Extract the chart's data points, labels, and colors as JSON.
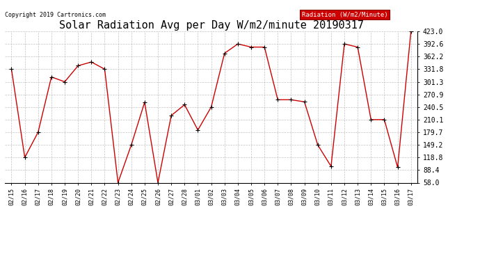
{
  "title": "Solar Radiation Avg per Day W/m2/minute 20190317",
  "copyright": "Copyright 2019 Cartronics.com",
  "legend_label": "Radiation (W/m2/Minute)",
  "dates": [
    "02/15",
    "02/16",
    "02/17",
    "02/18",
    "02/19",
    "02/20",
    "02/21",
    "02/22",
    "02/23",
    "02/24",
    "02/25",
    "02/26",
    "02/27",
    "02/28",
    "03/01",
    "03/02",
    "03/03",
    "03/04",
    "03/05",
    "03/06",
    "03/07",
    "03/08",
    "03/09",
    "03/10",
    "03/11",
    "03/12",
    "03/13",
    "03/14",
    "03/15",
    "03/16",
    "03/17"
  ],
  "values": [
    331.8,
    118.8,
    179.7,
    313.0,
    301.3,
    340.0,
    349.0,
    331.8,
    58.0,
    149.2,
    252.0,
    58.0,
    220.0,
    246.0,
    185.0,
    240.5,
    370.0,
    392.6,
    385.0,
    385.0,
    258.0,
    258.0,
    253.0,
    149.2,
    97.5,
    392.6,
    385.0,
    210.1,
    210.1,
    95.0,
    423.0
  ],
  "ylim": [
    58.0,
    423.0
  ],
  "yticks": [
    58.0,
    88.4,
    118.8,
    149.2,
    179.7,
    210.1,
    240.5,
    270.9,
    301.3,
    331.8,
    362.2,
    392.6,
    423.0
  ],
  "line_color": "#cc0000",
  "marker_color": "#000000",
  "bg_color": "#ffffff",
  "grid_color": "#bbbbbb",
  "title_fontsize": 11,
  "legend_bg": "#cc0000",
  "legend_text_color": "#ffffff"
}
